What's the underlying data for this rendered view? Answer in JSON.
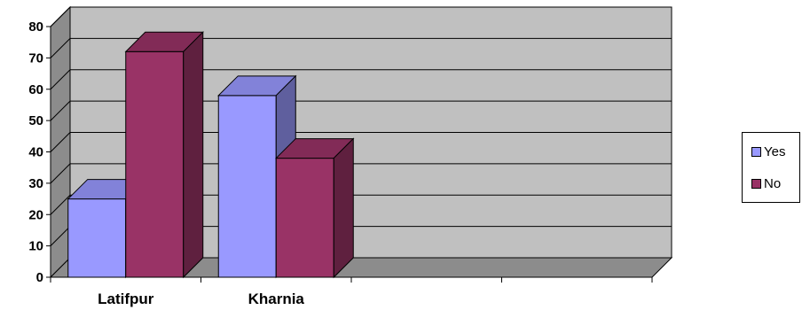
{
  "chart_data": {
    "type": "bar",
    "categories": [
      "Latifpur",
      "Kharnia",
      "",
      ""
    ],
    "series": [
      {
        "name": "Yes",
        "values": [
          25,
          58,
          null,
          null
        ],
        "color": "#9999ff"
      },
      {
        "name": "No",
        "values": [
          72,
          38,
          null,
          null
        ],
        "color": "#993366"
      }
    ],
    "yticks": [
      0,
      10,
      20,
      30,
      40,
      50,
      60,
      70,
      80
    ],
    "ylim": [
      0,
      80
    ],
    "title": "",
    "xlabel": "",
    "ylabel": "",
    "grid": true,
    "legend_position": "right",
    "style": "3d-clustered-column"
  }
}
